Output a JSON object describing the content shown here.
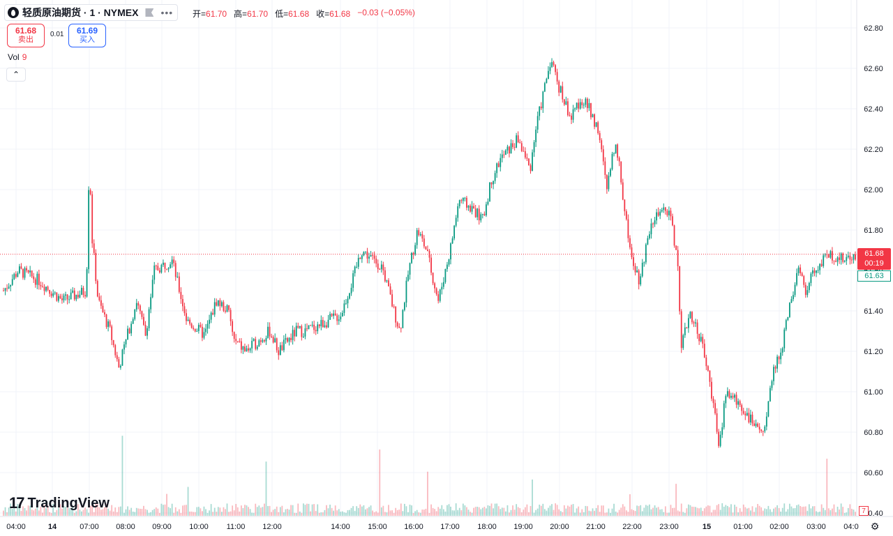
{
  "header": {
    "symbol": "轻质原油期货 · 1 · NYMEX",
    "ohlc": [
      {
        "key": "开=",
        "value": "61.70"
      },
      {
        "key": "高=",
        "value": "61.70"
      },
      {
        "key": "低=",
        "value": "61.68"
      },
      {
        "key": "收=",
        "value": "61.68"
      }
    ],
    "change": "−0.03 (−0.05%)"
  },
  "trade": {
    "sell_price": "61.68",
    "sell_label": "卖出",
    "spread": "0.01",
    "buy_price": "61.69",
    "buy_label": "买入"
  },
  "volume_legend": {
    "name": "Vol",
    "value": "9"
  },
  "watermark": "TradingView",
  "price_scale": {
    "last_price": "61.68",
    "countdown": "00:19",
    "bid_price": "61.63",
    "volume_badge": "7"
  },
  "colors": {
    "up": "#089981",
    "down": "#f23645",
    "grid": "#f0f3fa",
    "text": "#131722"
  },
  "chart_data": {
    "type": "candlestick",
    "title": "轻质原油期货 · 1 · NYMEX",
    "interval": "1",
    "y_ticks": [
      "62.80",
      "62.60",
      "62.40",
      "62.20",
      "62.00",
      "61.80",
      "61.60",
      "61.40",
      "61.20",
      "61.00",
      "60.80",
      "60.60",
      "60.40"
    ],
    "ylim": [
      60.4,
      62.8
    ],
    "x_ticks": [
      "04:00",
      "14",
      "07:00",
      "08:00",
      "09:00",
      "10:00",
      "11:00",
      "12:00",
      "14:00",
      "15:00",
      "16:00",
      "17:00",
      "18:00",
      "19:00",
      "20:00",
      "21:00",
      "22:00",
      "23:00",
      "15",
      "01:00",
      "02:00",
      "03:00",
      "04:0"
    ],
    "last_price": 61.68,
    "grid": true,
    "price_path": [
      [
        "04:00",
        61.5
      ],
      [
        "04:25",
        61.6
      ],
      [
        "05:00",
        61.55
      ],
      [
        "05:40",
        61.45
      ],
      [
        "06:20",
        61.5
      ],
      [
        "06:25",
        62.15
      ],
      [
        "06:30",
        61.75
      ],
      [
        "06:40",
        61.45
      ],
      [
        "07:00",
        61.3
      ],
      [
        "07:15",
        61.12
      ],
      [
        "07:45",
        61.45
      ],
      [
        "08:00",
        61.28
      ],
      [
        "08:15",
        61.6
      ],
      [
        "08:45",
        61.65
      ],
      [
        "09:10",
        61.35
      ],
      [
        "09:40",
        61.28
      ],
      [
        "10:00",
        61.45
      ],
      [
        "10:20",
        61.4
      ],
      [
        "10:30",
        61.25
      ],
      [
        "10:50",
        61.2
      ],
      [
        "11:10",
        61.25
      ],
      [
        "11:30",
        61.3
      ],
      [
        "11:45",
        61.2
      ],
      [
        "12:15",
        61.3
      ],
      [
        "12:30",
        61.3
      ],
      [
        "13:30",
        61.38
      ],
      [
        "13:50",
        61.55
      ],
      [
        "14:05",
        61.7
      ],
      [
        "14:40",
        61.62
      ],
      [
        "15:00",
        61.4
      ],
      [
        "15:10",
        61.3
      ],
      [
        "15:25",
        61.6
      ],
      [
        "15:40",
        61.8
      ],
      [
        "15:55",
        61.7
      ],
      [
        "16:15",
        61.45
      ],
      [
        "16:35",
        61.7
      ],
      [
        "16:50",
        61.95
      ],
      [
        "17:15",
        61.9
      ],
      [
        "17:30",
        61.85
      ],
      [
        "17:45",
        62.05
      ],
      [
        "18:00",
        62.15
      ],
      [
        "18:30",
        62.25
      ],
      [
        "18:50",
        62.1
      ],
      [
        "19:00",
        62.3
      ],
      [
        "19:25",
        62.65
      ],
      [
        "19:40",
        62.5
      ],
      [
        "20:00",
        62.35
      ],
      [
        "20:15",
        62.45
      ],
      [
        "20:30",
        62.4
      ],
      [
        "20:45",
        62.3
      ],
      [
        "21:00",
        62.0
      ],
      [
        "21:15",
        62.25
      ],
      [
        "21:30",
        61.9
      ],
      [
        "21:40",
        61.7
      ],
      [
        "21:55",
        61.55
      ],
      [
        "22:15",
        61.85
      ],
      [
        "22:45",
        61.9
      ],
      [
        "23:00",
        61.65
      ],
      [
        "23:05",
        61.2
      ],
      [
        "23:20",
        61.4
      ],
      [
        "23:40",
        61.25
      ],
      [
        "23:50",
        61.1
      ],
      [
        "00:00",
        60.95
      ],
      [
        "00:10",
        60.7
      ],
      [
        "00:20",
        61.0
      ],
      [
        "00:40",
        60.95
      ],
      [
        "00:55",
        60.9
      ],
      [
        "01:15",
        60.8
      ],
      [
        "01:30",
        60.85
      ],
      [
        "01:40",
        61.1
      ],
      [
        "01:55",
        61.2
      ],
      [
        "02:10",
        61.45
      ],
      [
        "02:25",
        61.6
      ],
      [
        "02:35",
        61.5
      ],
      [
        "02:55",
        61.62
      ],
      [
        "03:20",
        61.68
      ],
      [
        "03:40",
        61.65
      ],
      [
        "04:00",
        61.68
      ]
    ]
  }
}
